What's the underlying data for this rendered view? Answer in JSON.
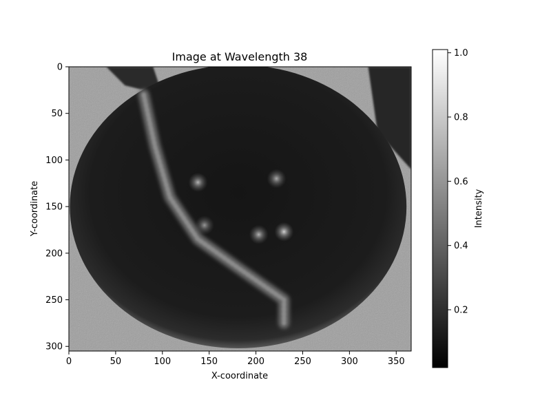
{
  "chart_data": {
    "type": "heatmap",
    "title": "Image at Wavelength 38",
    "xlabel": "X-coordinate",
    "ylabel": "Y-coordinate",
    "xlim": [
      0,
      366
    ],
    "ylim": [
      305,
      0
    ],
    "x_ticks": [
      0,
      50,
      100,
      150,
      200,
      250,
      300,
      350
    ],
    "y_ticks": [
      0,
      50,
      100,
      150,
      200,
      250,
      300
    ],
    "colormap": "gray",
    "colorbar": {
      "label": "Intensity",
      "range": [
        0.02,
        1.01
      ],
      "ticks": [
        0.2,
        0.4,
        0.6,
        0.8,
        1.0
      ],
      "tick_labels": [
        "0.2",
        "0.4",
        "0.6",
        "0.8",
        "1.0"
      ]
    },
    "image_features": {
      "background_intensity": 0.62,
      "sphere": {
        "cx": 181,
        "cy": 150,
        "rx": 180,
        "ry": 152,
        "intensity": 0.12
      },
      "highlights": [
        {
          "x": 138,
          "y": 124,
          "intensity": 0.55
        },
        {
          "x": 222,
          "y": 120,
          "intensity": 0.5
        },
        {
          "x": 230,
          "y": 177,
          "intensity": 0.7
        },
        {
          "x": 203,
          "y": 180,
          "intensity": 0.55
        },
        {
          "x": 145,
          "y": 170,
          "intensity": 0.4
        }
      ],
      "stem_path": [
        [
          80,
          30
        ],
        [
          92,
          85
        ],
        [
          108,
          140
        ],
        [
          138,
          185
        ],
        [
          180,
          215
        ],
        [
          230,
          250
        ],
        [
          230,
          275
        ]
      ]
    }
  }
}
